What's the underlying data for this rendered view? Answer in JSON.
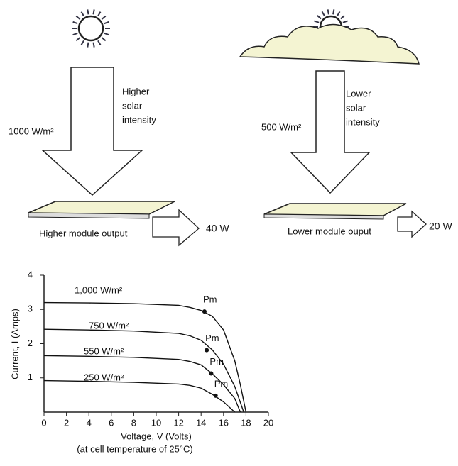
{
  "diagram": {
    "left": {
      "intensity_lines": [
        "Higher",
        "solar",
        "intensity"
      ],
      "irradiance": "1000 W/m²",
      "module": "Higher module output",
      "power": "40 W"
    },
    "right": {
      "intensity_lines": [
        "Lower",
        "solar",
        "intensity"
      ],
      "irradiance": "500 W/m²",
      "module": "Lower module ouput",
      "power": "20 W"
    }
  },
  "chart_data": {
    "type": "line",
    "xlabel": "Voltage, V (Volts)",
    "subtitle": "(at cell temperature of 25°C)",
    "ylabel": "Current, I   (Amps)",
    "xlim": [
      0,
      20
    ],
    "ylim": [
      0,
      4
    ],
    "xticks": [
      0,
      2,
      4,
      6,
      8,
      10,
      12,
      14,
      16,
      18,
      20
    ],
    "yticks": [
      1,
      2,
      3,
      4
    ],
    "series": [
      {
        "name": "1,000 W/m²",
        "color": "#111",
        "x": [
          0,
          4,
          8,
          12,
          13,
          14,
          15,
          16,
          17,
          17.5,
          18
        ],
        "values": [
          3.2,
          3.19,
          3.17,
          3.12,
          3.06,
          2.97,
          2.8,
          2.4,
          1.5,
          0.8,
          0
        ]
      },
      {
        "name": "750 W/m²",
        "color": "#111",
        "x": [
          0,
          4,
          8,
          12,
          13,
          14,
          15,
          16,
          17,
          17.8
        ],
        "values": [
          2.42,
          2.4,
          2.37,
          2.3,
          2.23,
          2.1,
          1.82,
          1.4,
          0.75,
          0
        ]
      },
      {
        "name": "550 W/m²",
        "color": "#111",
        "x": [
          0,
          4,
          8,
          12,
          13,
          14,
          15,
          16,
          17,
          17.5
        ],
        "values": [
          1.65,
          1.63,
          1.6,
          1.54,
          1.48,
          1.38,
          1.12,
          0.8,
          0.4,
          0
        ]
      },
      {
        "name": "250 W/m²",
        "color": "#111",
        "x": [
          0,
          4,
          8,
          12,
          13,
          14,
          15,
          16,
          17
        ],
        "values": [
          0.92,
          0.9,
          0.87,
          0.82,
          0.78,
          0.7,
          0.52,
          0.3,
          0
        ]
      }
    ],
    "markers": [
      {
        "label": "Pm",
        "x": 14.3,
        "y": 2.94
      },
      {
        "label": "Pm",
        "x": 14.5,
        "y": 1.81
      },
      {
        "label": "Pm",
        "x": 14.9,
        "y": 1.13
      },
      {
        "label": "Pm",
        "x": 15.3,
        "y": 0.48
      }
    ]
  }
}
